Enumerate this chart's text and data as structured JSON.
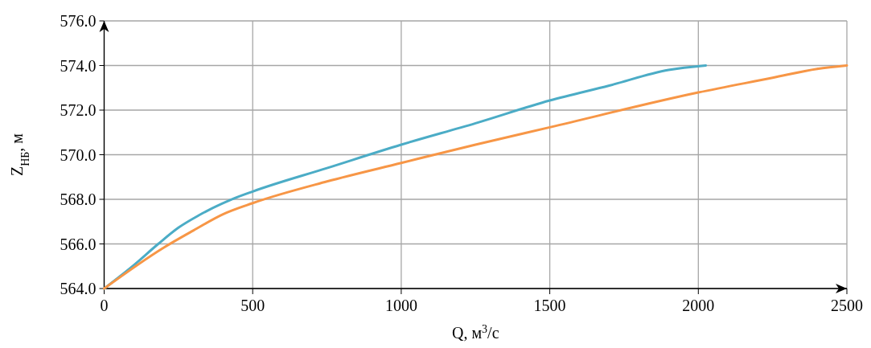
{
  "chart_data": {
    "type": "line",
    "xlabel": "Q, м$^{3}$/с",
    "ylabel": "Z$_{НБ}$, м",
    "xlim": [
      0,
      2500
    ],
    "xticks": [
      0,
      500,
      1000,
      1500,
      2000,
      2500
    ],
    "ylim": [
      564,
      576
    ],
    "yticks": [
      {
        "value": 564,
        "label": "564.0"
      },
      {
        "value": 566,
        "label": "566.0"
      },
      {
        "value": 568,
        "label": "568.0"
      },
      {
        "value": 570,
        "label": "570.0"
      },
      {
        "value": 572,
        "label": "572.0"
      },
      {
        "value": 574,
        "label": "574.0"
      },
      {
        "value": 576,
        "label": "576.0"
      }
    ],
    "grid": true,
    "marker": "none",
    "line_style": "solid",
    "series": [
      {
        "color": "#4bacc6",
        "x": [
          0,
          100,
          182,
          250,
          317,
          426,
          500,
          750,
          1000,
          1250,
          1500,
          1700,
          1900,
          2025
        ],
        "values": [
          564,
          565.05,
          566,
          566.73,
          567.27,
          567.98,
          568.35,
          569.4,
          570.45,
          571.41,
          572.43,
          573.1,
          573.8,
          574
        ]
      },
      {
        "color": "#f79646",
        "x": [
          0,
          200,
          300,
          400,
          500,
          750,
          1000,
          1250,
          1500,
          2000,
          2250,
          2400,
          2500
        ],
        "values": [
          564,
          565.83,
          566.6,
          567.33,
          567.83,
          568.8,
          569.63,
          570.45,
          571.23,
          572.79,
          573.45,
          573.85,
          574
        ]
      }
    ]
  }
}
